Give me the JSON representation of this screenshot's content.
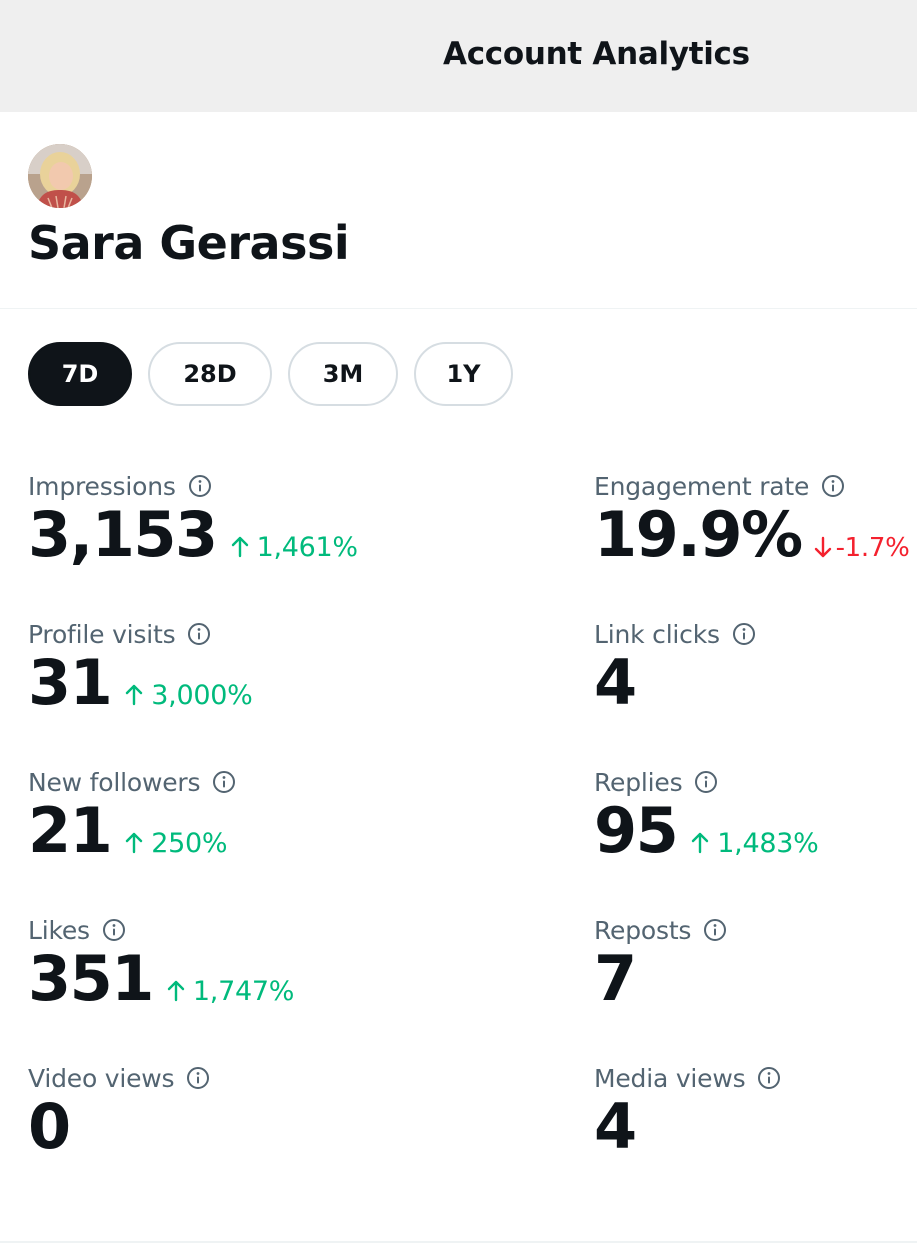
{
  "header": {
    "title": "Account Analytics"
  },
  "profile": {
    "name": "Sara Gerassi"
  },
  "range": {
    "selected": "7D",
    "options": [
      "7D",
      "28D",
      "3M",
      "1Y"
    ]
  },
  "metrics": {
    "left": [
      {
        "label": "Impressions",
        "value": "3,153",
        "change": "1,461%",
        "direction": "up"
      },
      {
        "label": "Profile visits",
        "value": "31",
        "change": "3,000%",
        "direction": "up"
      },
      {
        "label": "New followers",
        "value": "21",
        "change": "250%",
        "direction": "up"
      },
      {
        "label": "Likes",
        "value": "351",
        "change": "1,747%",
        "direction": "up"
      },
      {
        "label": "Video views",
        "value": "0",
        "change": "",
        "direction": "none"
      }
    ],
    "right": [
      {
        "label": "Engagement rate",
        "value": "19.9%",
        "change": "-1.7%",
        "direction": "down"
      },
      {
        "label": "Link clicks",
        "value": "4",
        "change": "",
        "direction": "none"
      },
      {
        "label": "Replies",
        "value": "95",
        "change": "1,483%",
        "direction": "up"
      },
      {
        "label": "Reposts",
        "value": "7",
        "change": "",
        "direction": "none"
      },
      {
        "label": "Media views",
        "value": "4",
        "change": "",
        "direction": "none"
      }
    ]
  },
  "colors": {
    "up": "#00ba7c",
    "down": "#f4212e",
    "text_primary": "#0f1419",
    "text_secondary": "#536471",
    "header_bg": "#efefef"
  },
  "icons": {
    "info": "info-circle-icon",
    "up": "arrow-up-icon",
    "down": "arrow-down-icon"
  }
}
